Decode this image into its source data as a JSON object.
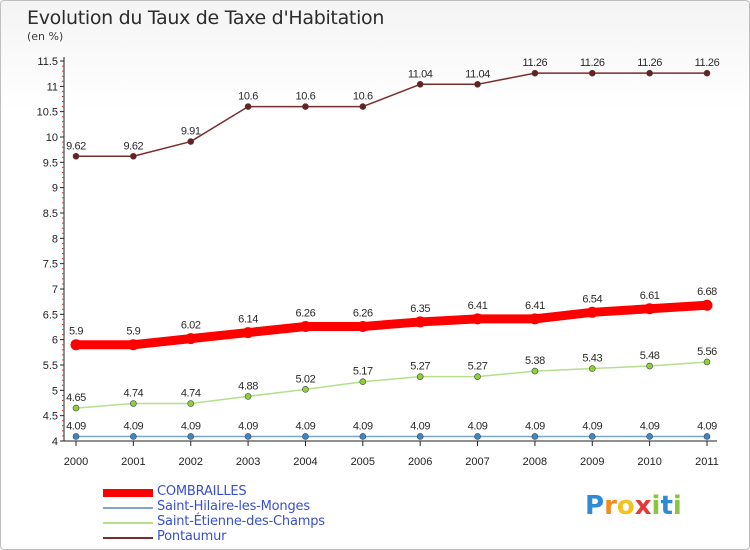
{
  "title": "Evolution du Taux de Taxe d'Habitation",
  "unit_label": "(en %)",
  "logo": {
    "text": "Proxiti",
    "letters": [
      {
        "ch": "P",
        "color": "#2f8bd6"
      },
      {
        "ch": "r",
        "color": "#f28c1e"
      },
      {
        "ch": "o",
        "color": "#f2c31e"
      },
      {
        "ch": "x",
        "color": "#e23a3a"
      },
      {
        "ch": "i",
        "color": "#8bc53f"
      },
      {
        "ch": "t",
        "color": "#2f8bd6"
      },
      {
        "ch": "i",
        "color": "#8bc53f"
      }
    ]
  },
  "chart_data": {
    "type": "line",
    "title": "Evolution du Taux de Taxe d'Habitation",
    "ylabel": "(en %)",
    "xlabel": "",
    "categories": [
      "2000",
      "2001",
      "2002",
      "2003",
      "2004",
      "2005",
      "2006",
      "2007",
      "2008",
      "2009",
      "2010",
      "2011"
    ],
    "ylim": [
      4,
      11.5
    ],
    "yticks": [
      "4",
      "4.5",
      "5",
      "5.5",
      "6",
      "6.5",
      "7",
      "7.5",
      "8",
      "8.5",
      "9",
      "9.5",
      "10",
      "10.5",
      "11",
      "11.5"
    ],
    "legend_position": "bottom-left",
    "series": [
      {
        "name": "COMBRAILLES",
        "color": "#ff0000",
        "marker": "#ff0000",
        "width": "thick",
        "values": [
          5.9,
          5.9,
          6.02,
          6.14,
          6.26,
          6.26,
          6.35,
          6.41,
          6.41,
          6.54,
          6.61,
          6.68
        ],
        "labels": [
          "5.9",
          "5.9",
          "6.02",
          "6.14",
          "6.26",
          "6.26",
          "6.35",
          "6.41",
          "6.41",
          "6.54",
          "6.61",
          "6.68"
        ]
      },
      {
        "name": "Saint-Hilaire-les-Monges",
        "color": "#7ea6c8",
        "marker": "#3f86c4",
        "width": "thin",
        "values": [
          4.09,
          4.09,
          4.09,
          4.09,
          4.09,
          4.09,
          4.09,
          4.09,
          4.09,
          4.09,
          4.09,
          4.09
        ],
        "labels": [
          "4.09",
          "4.09",
          "4.09",
          "4.09",
          "4.09",
          "4.09",
          "4.09",
          "4.09",
          "4.09",
          "4.09",
          "4.09",
          "4.09"
        ]
      },
      {
        "name": "Saint-Étienne-des-Champs",
        "color": "#b5e08e",
        "marker": "#8bd23a",
        "width": "thin",
        "values": [
          4.65,
          4.74,
          4.74,
          4.88,
          5.02,
          5.17,
          5.27,
          5.27,
          5.38,
          5.43,
          5.48,
          5.56
        ],
        "labels": [
          "4.65",
          "4.74",
          "4.74",
          "4.88",
          "5.02",
          "5.17",
          "5.27",
          "5.27",
          "5.38",
          "5.43",
          "5.48",
          "5.56"
        ]
      },
      {
        "name": "Pontaumur",
        "color": "#7a2e2e",
        "marker": "#6b1f1f",
        "width": "thin",
        "values": [
          9.62,
          9.62,
          9.91,
          10.6,
          10.6,
          10.6,
          11.04,
          11.04,
          11.26,
          11.26,
          11.26,
          11.26
        ],
        "labels": [
          "9.62",
          "9.62",
          "9.91",
          "10.6",
          "10.6",
          "10.6",
          "11.04",
          "11.04",
          "11.26",
          "11.26",
          "11.26",
          "11.26"
        ]
      }
    ]
  }
}
